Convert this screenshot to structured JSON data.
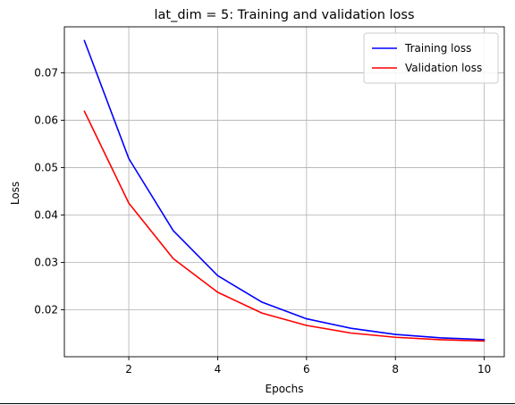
{
  "chart_data": {
    "type": "line",
    "title": "lat_dim = 5: Training and validation loss",
    "xlabel": "Epochs",
    "ylabel": "Loss",
    "xlim": [
      0.55,
      10.45
    ],
    "ylim": [
      0.0101,
      0.0797
    ],
    "xticks": [
      2,
      4,
      6,
      8,
      10
    ],
    "yticks": [
      0.02,
      0.03,
      0.04,
      0.05,
      0.06,
      0.07
    ],
    "xtick_labels": [
      "2",
      "4",
      "6",
      "8",
      "10"
    ],
    "ytick_labels": [
      "0.02",
      "0.03",
      "0.04",
      "0.05",
      "0.06",
      "0.07"
    ],
    "grid": true,
    "legend_position": "upper-right",
    "x": [
      1,
      2,
      3,
      4,
      5,
      6,
      7,
      8,
      9,
      10
    ],
    "series": [
      {
        "name": "Training loss",
        "color": "#0000ff",
        "values": [
          0.0768,
          0.0519,
          0.0367,
          0.0272,
          0.0216,
          0.0181,
          0.0161,
          0.0148,
          0.0141,
          0.0137
        ]
      },
      {
        "name": "Validation loss",
        "color": "#ff0000",
        "values": [
          0.0619,
          0.0425,
          0.0308,
          0.0237,
          0.0193,
          0.0167,
          0.0151,
          0.0142,
          0.0137,
          0.0134
        ]
      }
    ]
  }
}
